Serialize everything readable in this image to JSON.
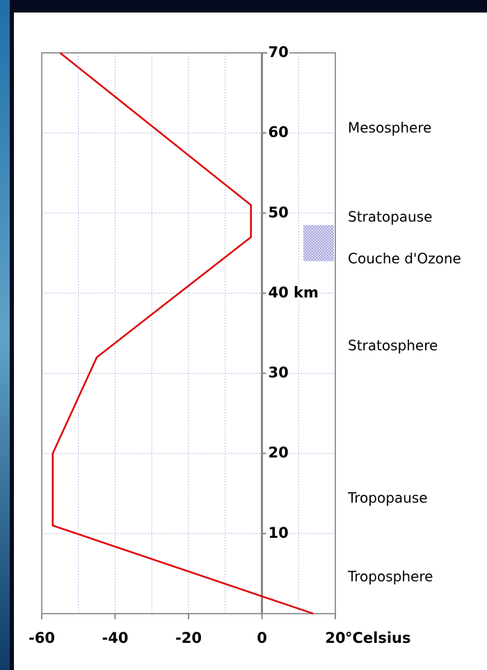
{
  "chart_data": {
    "type": "line",
    "x_label": "°Celsius",
    "xlim": [
      -60,
      20
    ],
    "xticks": [
      -60,
      -40,
      -20,
      0,
      20
    ],
    "xminor": [
      -50,
      -30,
      -10,
      10
    ],
    "ylim": [
      0,
      70
    ],
    "yticks": [
      10,
      20,
      30,
      {
        "value": 40,
        "label": "40 km"
      },
      50,
      60,
      70
    ],
    "grid": true,
    "series": [
      {
        "color": "#e00000",
        "x": [
          14,
          -57,
          -57,
          -45,
          -3,
          -3,
          -55
        ],
        "values": [
          0,
          11,
          20,
          32,
          47,
          51,
          70
        ]
      }
    ],
    "layers": [
      "Mesosphere",
      "Stratopause",
      "Couche d'Ozone",
      "Stratosphere",
      "Tropopause",
      "Troposphere"
    ],
    "ozone_range": [
      44,
      48.5
    ]
  }
}
